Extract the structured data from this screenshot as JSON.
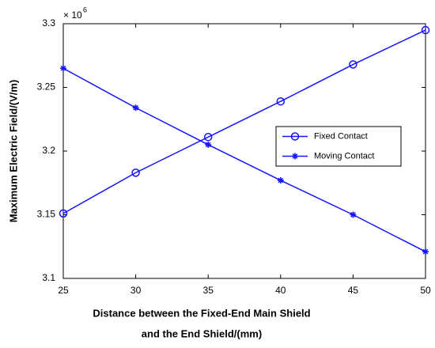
{
  "chart_data": {
    "type": "line",
    "xlabel": [
      "Distance between the Fixed-End Main Shield",
      "and the End Shield/(mm)"
    ],
    "ylabel": "Maximum Electric Field/(V/m)",
    "y_multiplier": {
      "base": "× 10",
      "exponent": "6"
    },
    "x": [
      25,
      30,
      35,
      40,
      45,
      50
    ],
    "series": [
      {
        "name": "Fixed Contact",
        "color": "#1414ff",
        "marker": "circle",
        "values": [
          3.151,
          3.183,
          3.211,
          3.239,
          3.268,
          3.295
        ]
      },
      {
        "name": "Moving Contact",
        "color": "#1414ff",
        "marker": "star",
        "values": [
          3.265,
          3.234,
          3.205,
          3.177,
          3.15,
          3.121
        ]
      }
    ],
    "xlim": [
      25,
      50
    ],
    "xticks": [
      25,
      30,
      35,
      40,
      45,
      50
    ],
    "ylim": [
      3.1,
      3.3
    ],
    "yticks": [
      3.1,
      3.15,
      3.2,
      3.25,
      3.3
    ],
    "grid": false
  }
}
